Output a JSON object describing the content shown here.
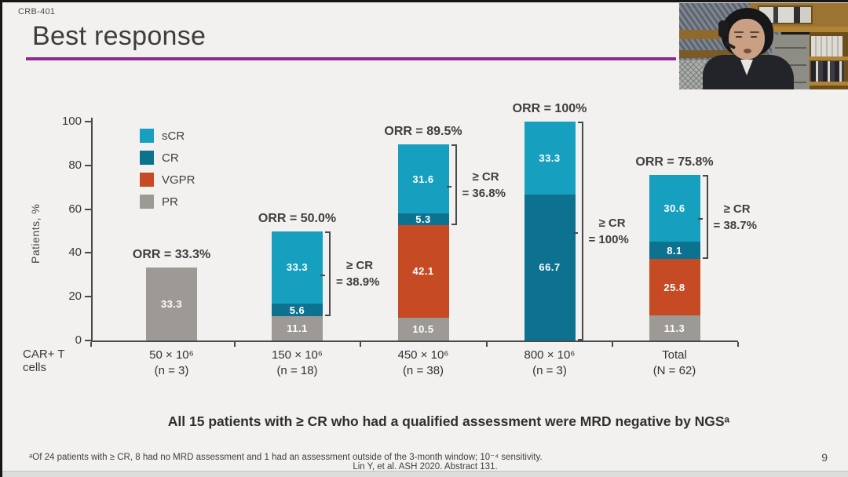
{
  "slide": {
    "program_label": "CRB-401",
    "title": "Best response",
    "statement": "All 15 patients with ≥ CR who had a qualified assessment were MRD negative by NGSᵃ",
    "footnote": "ᵃOf 24 patients with ≥ CR, 8 had no MRD assessment and 1 had an assessment outside of the 3-month window; 10⁻⁴ sensitivity.",
    "citation": "Lin Y, et al. ASH 2020. Abstract 131.",
    "page_number": "9"
  },
  "webcam": {
    "type": "presenter-video-thumbnail"
  },
  "chart_data": {
    "type": "bar",
    "stacked": true,
    "ylabel": "Patients, %",
    "x_axis_title": "CAR+ T cells",
    "ylim": [
      0,
      100
    ],
    "yticks": [
      0,
      20,
      40,
      60,
      80,
      100
    ],
    "grid": false,
    "legend_position": "top-left-inside",
    "legend": [
      {
        "name": "sCR",
        "color": "#179fc0"
      },
      {
        "name": "CR",
        "color": "#0d7190"
      },
      {
        "name": "VGPR",
        "color": "#c64b24"
      },
      {
        "name": "PR",
        "color": "#9d9995"
      }
    ],
    "stack_order_bottom_to_top": [
      "PR",
      "VGPR",
      "CR",
      "sCR"
    ],
    "bars": [
      {
        "dose": "50 × 10⁶",
        "n": "(n = 3)",
        "orr_label": "ORR = 33.3%",
        "segments": [
          {
            "name": "PR",
            "value": 33.3
          }
        ],
        "cr_annotation": null
      },
      {
        "dose": "150 × 10⁶",
        "n": "(n = 18)",
        "orr_label": "ORR = 50.0%",
        "segments": [
          {
            "name": "PR",
            "value": 11.1
          },
          {
            "name": "CR",
            "value": 5.6
          },
          {
            "name": "sCR",
            "value": 33.3
          }
        ],
        "cr_annotation": [
          "≥ CR",
          "= 38.9%"
        ]
      },
      {
        "dose": "450 × 10⁶",
        "n": "(n = 38)",
        "orr_label": "ORR = 89.5%",
        "segments": [
          {
            "name": "PR",
            "value": 10.5
          },
          {
            "name": "VGPR",
            "value": 42.1
          },
          {
            "name": "CR",
            "value": 5.3
          },
          {
            "name": "sCR",
            "value": 31.6
          }
        ],
        "cr_annotation": [
          "≥ CR",
          "= 36.8%"
        ]
      },
      {
        "dose": "800 × 10⁶",
        "n": "(n = 3)",
        "orr_label": "ORR = 100%",
        "segments": [
          {
            "name": "CR",
            "value": 66.7
          },
          {
            "name": "sCR",
            "value": 33.3
          }
        ],
        "cr_annotation": [
          "≥ CR",
          "= 100%"
        ]
      },
      {
        "dose": "Total",
        "n": "(N = 62)",
        "orr_label": "ORR = 75.8%",
        "segments": [
          {
            "name": "PR",
            "value": 11.3
          },
          {
            "name": "VGPR",
            "value": 25.8
          },
          {
            "name": "CR",
            "value": 8.1
          },
          {
            "name": "sCR",
            "value": 30.6
          }
        ],
        "cr_annotation": [
          "≥ CR",
          "= 38.7%"
        ]
      }
    ]
  }
}
